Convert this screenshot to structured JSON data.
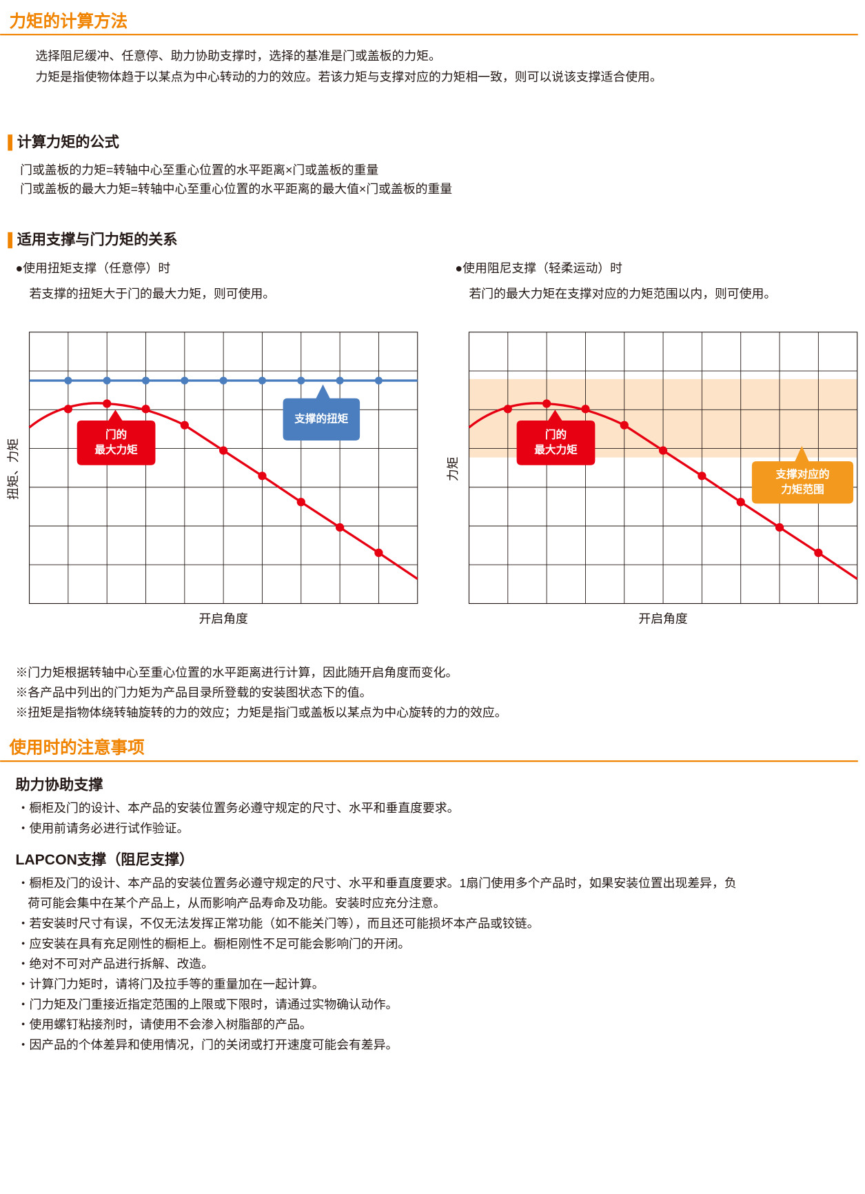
{
  "sections": [
    {
      "title": "力矩的计算方法",
      "intro": [
        "选择阻尼缓冲、任意停、助力协助支撑时，选择的基准是门或盖板的力矩。",
        "力矩是指使物体趋于以某点为中心转动的力的效应。若该力矩与支撑对应的力矩相一致，则可以说该支撑适合使用。"
      ],
      "formula": {
        "title": "计算力矩的公式",
        "lines": [
          "门或盖板的力矩=转轴中心至重心位置的水平距离×门或盖板的重量",
          "门或盖板的最大力矩=转轴中心至重心位置的水平距离的最大值×门或盖板的重量"
        ]
      },
      "relation": {
        "title": "适用支撑与门力矩的关系",
        "left": {
          "heading": "●使用扭矩支撑（任意停）时",
          "desc": "若支撑的扭矩大于门的最大力矩，则可使用。",
          "y_label": "扭矩、力矩",
          "x_label": "开启角度",
          "door_label": [
            "门的",
            "最大力矩"
          ],
          "support_label": [
            "支撑的扭矩"
          ]
        },
        "right": {
          "heading": "●使用阻尼支撑（轻柔运动）时",
          "desc": "若门的最大力矩在支撑对应的力矩范围以内，则可使用。",
          "y_label": "力矩",
          "x_label": "开启角度",
          "door_label": [
            "门的",
            "最大力矩"
          ],
          "support_label": [
            "支撑对应的",
            "力矩范围"
          ]
        }
      },
      "notes": [
        "※门力矩根据转轴中心至重心位置的水平距离进行计算，因此随开启角度而变化。",
        "※各产品中列出的门力矩为产品目录所登载的安装图状态下的值。",
        "※扭矩是指物体绕转轴旋转的力的效应；力矩是指门或盖板以某点为中心旋转的力的效应。"
      ]
    },
    {
      "title": "使用时的注意事项",
      "groups": [
        {
          "title": "助力协助支撑",
          "items": [
            [
              "・橱柜及门的设计、本产品的安装位置务必遵守规定的尺寸、水平和垂直度要求。"
            ],
            [
              "・使用前请务必进行试作验证。"
            ]
          ]
        },
        {
          "title": "LAPCON支撑（阻尼支撑）",
          "items": [
            [
              "・橱柜及门的设计、本产品的安装位置务必遵守规定的尺寸、水平和垂直度要求。1扇门使用多个产品时，如果安装位置出现差异，负",
              "荷可能会集中在某个产品上，从而影响产品寿命及功能。安装时应充分注意。"
            ],
            [
              "・若安装时尺寸有误，不仅无法发挥正常功能（如不能关门等），而且还可能损坏本产品或铰链。"
            ],
            [
              "・应安装在具有充足刚性的橱柜上。橱柜刚性不足可能会影响门的开闭。"
            ],
            [
              "・绝对不可对产品进行拆解、改造。"
            ],
            [
              "・计算门力矩时，请将门及拉手等的重量加在一起计算。"
            ],
            [
              "・门力矩及门重接近指定范围的上限或下限时，请通过实物确认动作。"
            ],
            [
              "・使用螺钉粘接剂时，请使用不会渗入树脂部的产品。"
            ],
            [
              "・因产品的个体差异和使用情况，门的关闭或打开速度可能会有差异。"
            ]
          ]
        }
      ]
    }
  ]
}
